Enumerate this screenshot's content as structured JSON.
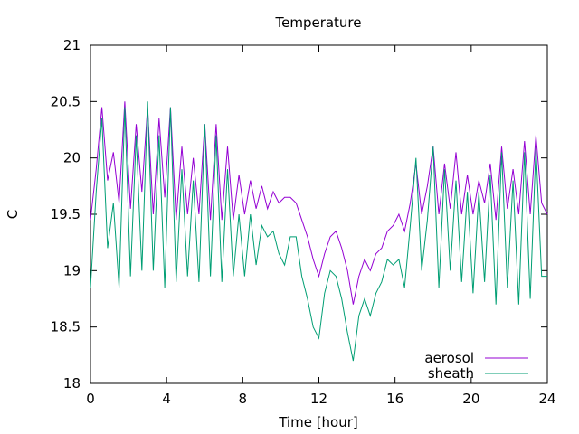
{
  "chart_data": {
    "type": "line",
    "title": "Temperature",
    "xlabel": "Time [hour]",
    "ylabel": "C",
    "xlim": [
      0,
      24
    ],
    "ylim": [
      18,
      21
    ],
    "xticks": [
      0,
      4,
      8,
      12,
      16,
      20,
      24
    ],
    "xtick_labels": [
      "0",
      "4",
      "8",
      "12",
      "16",
      "20",
      "24"
    ],
    "yticks": [
      18,
      18.5,
      19,
      19.5,
      20,
      20.5,
      21
    ],
    "ytick_labels": [
      "18",
      "18.5",
      "19",
      "19.5",
      "20",
      "20.5",
      "21"
    ],
    "grid": false,
    "legend_position": "bottom-right",
    "series": [
      {
        "name": "aerosol",
        "color": "#9400d3",
        "x": [
          0,
          0.3,
          0.6,
          0.9,
          1.2,
          1.5,
          1.8,
          2.1,
          2.4,
          2.7,
          3.0,
          3.3,
          3.6,
          3.9,
          4.2,
          4.5,
          4.8,
          5.1,
          5.4,
          5.7,
          6.0,
          6.3,
          6.6,
          6.9,
          7.2,
          7.5,
          7.8,
          8.1,
          8.4,
          8.7,
          9.0,
          9.3,
          9.6,
          9.9,
          10.2,
          10.5,
          10.8,
          11.1,
          11.4,
          11.7,
          12.0,
          12.3,
          12.6,
          12.9,
          13.2,
          13.5,
          13.8,
          14.1,
          14.4,
          14.7,
          15.0,
          15.3,
          15.6,
          15.9,
          16.2,
          16.5,
          16.8,
          17.1,
          17.4,
          17.7,
          18.0,
          18.3,
          18.6,
          18.9,
          19.2,
          19.5,
          19.8,
          20.1,
          20.4,
          20.7,
          21.0,
          21.3,
          21.6,
          21.9,
          22.2,
          22.5,
          22.8,
          23.1,
          23.4,
          23.7,
          24.0
        ],
        "y": [
          19.45,
          19.9,
          20.45,
          19.8,
          20.05,
          19.6,
          20.5,
          19.55,
          20.3,
          19.7,
          20.45,
          19.5,
          20.35,
          19.65,
          20.45,
          19.45,
          20.1,
          19.5,
          20.0,
          19.5,
          20.3,
          19.45,
          20.3,
          19.45,
          20.1,
          19.45,
          19.85,
          19.5,
          19.8,
          19.55,
          19.75,
          19.55,
          19.7,
          19.6,
          19.65,
          19.65,
          19.6,
          19.45,
          19.3,
          19.1,
          18.95,
          19.15,
          19.3,
          19.35,
          19.2,
          19.0,
          18.7,
          18.95,
          19.1,
          19.0,
          19.15,
          19.2,
          19.35,
          19.4,
          19.5,
          19.35,
          19.6,
          19.95,
          19.5,
          19.75,
          20.1,
          19.5,
          19.95,
          19.55,
          20.05,
          19.5,
          19.85,
          19.5,
          19.8,
          19.6,
          19.95,
          19.45,
          20.1,
          19.55,
          19.9,
          19.5,
          20.15,
          19.5,
          20.2,
          19.6,
          19.5
        ]
      },
      {
        "name": "sheath",
        "color": "#009e73",
        "x": [
          0,
          0.3,
          0.6,
          0.9,
          1.2,
          1.5,
          1.8,
          2.1,
          2.4,
          2.7,
          3.0,
          3.3,
          3.6,
          3.9,
          4.2,
          4.5,
          4.8,
          5.1,
          5.4,
          5.7,
          6.0,
          6.3,
          6.6,
          6.9,
          7.2,
          7.5,
          7.8,
          8.1,
          8.4,
          8.7,
          9.0,
          9.3,
          9.6,
          9.9,
          10.2,
          10.5,
          10.8,
          11.1,
          11.4,
          11.7,
          12.0,
          12.3,
          12.6,
          12.9,
          13.2,
          13.5,
          13.8,
          14.1,
          14.4,
          14.7,
          15.0,
          15.3,
          15.6,
          15.9,
          16.2,
          16.5,
          16.8,
          17.1,
          17.4,
          17.7,
          18.0,
          18.3,
          18.6,
          18.9,
          19.2,
          19.5,
          19.8,
          20.1,
          20.4,
          20.7,
          21.0,
          21.3,
          21.6,
          21.9,
          22.2,
          22.5,
          22.8,
          23.1,
          23.4,
          23.7,
          24.0
        ],
        "y": [
          18.85,
          19.7,
          20.35,
          19.2,
          19.6,
          18.85,
          20.45,
          18.95,
          20.2,
          19.0,
          20.5,
          19.0,
          20.2,
          18.85,
          20.45,
          18.9,
          19.9,
          18.95,
          19.8,
          18.9,
          20.3,
          18.95,
          20.2,
          18.9,
          19.9,
          18.95,
          19.5,
          18.95,
          19.5,
          19.05,
          19.4,
          19.3,
          19.35,
          19.15,
          19.05,
          19.3,
          19.3,
          18.95,
          18.75,
          18.5,
          18.4,
          18.8,
          19.0,
          18.95,
          18.75,
          18.45,
          18.2,
          18.6,
          18.75,
          18.6,
          18.8,
          18.9,
          19.1,
          19.05,
          19.1,
          18.85,
          19.4,
          20.0,
          19.0,
          19.45,
          20.1,
          18.85,
          19.9,
          19.0,
          19.8,
          18.9,
          19.7,
          18.8,
          19.7,
          18.9,
          19.85,
          18.7,
          20.05,
          18.85,
          19.8,
          18.7,
          20.05,
          18.75,
          20.1,
          18.95,
          18.95
        ]
      }
    ]
  }
}
